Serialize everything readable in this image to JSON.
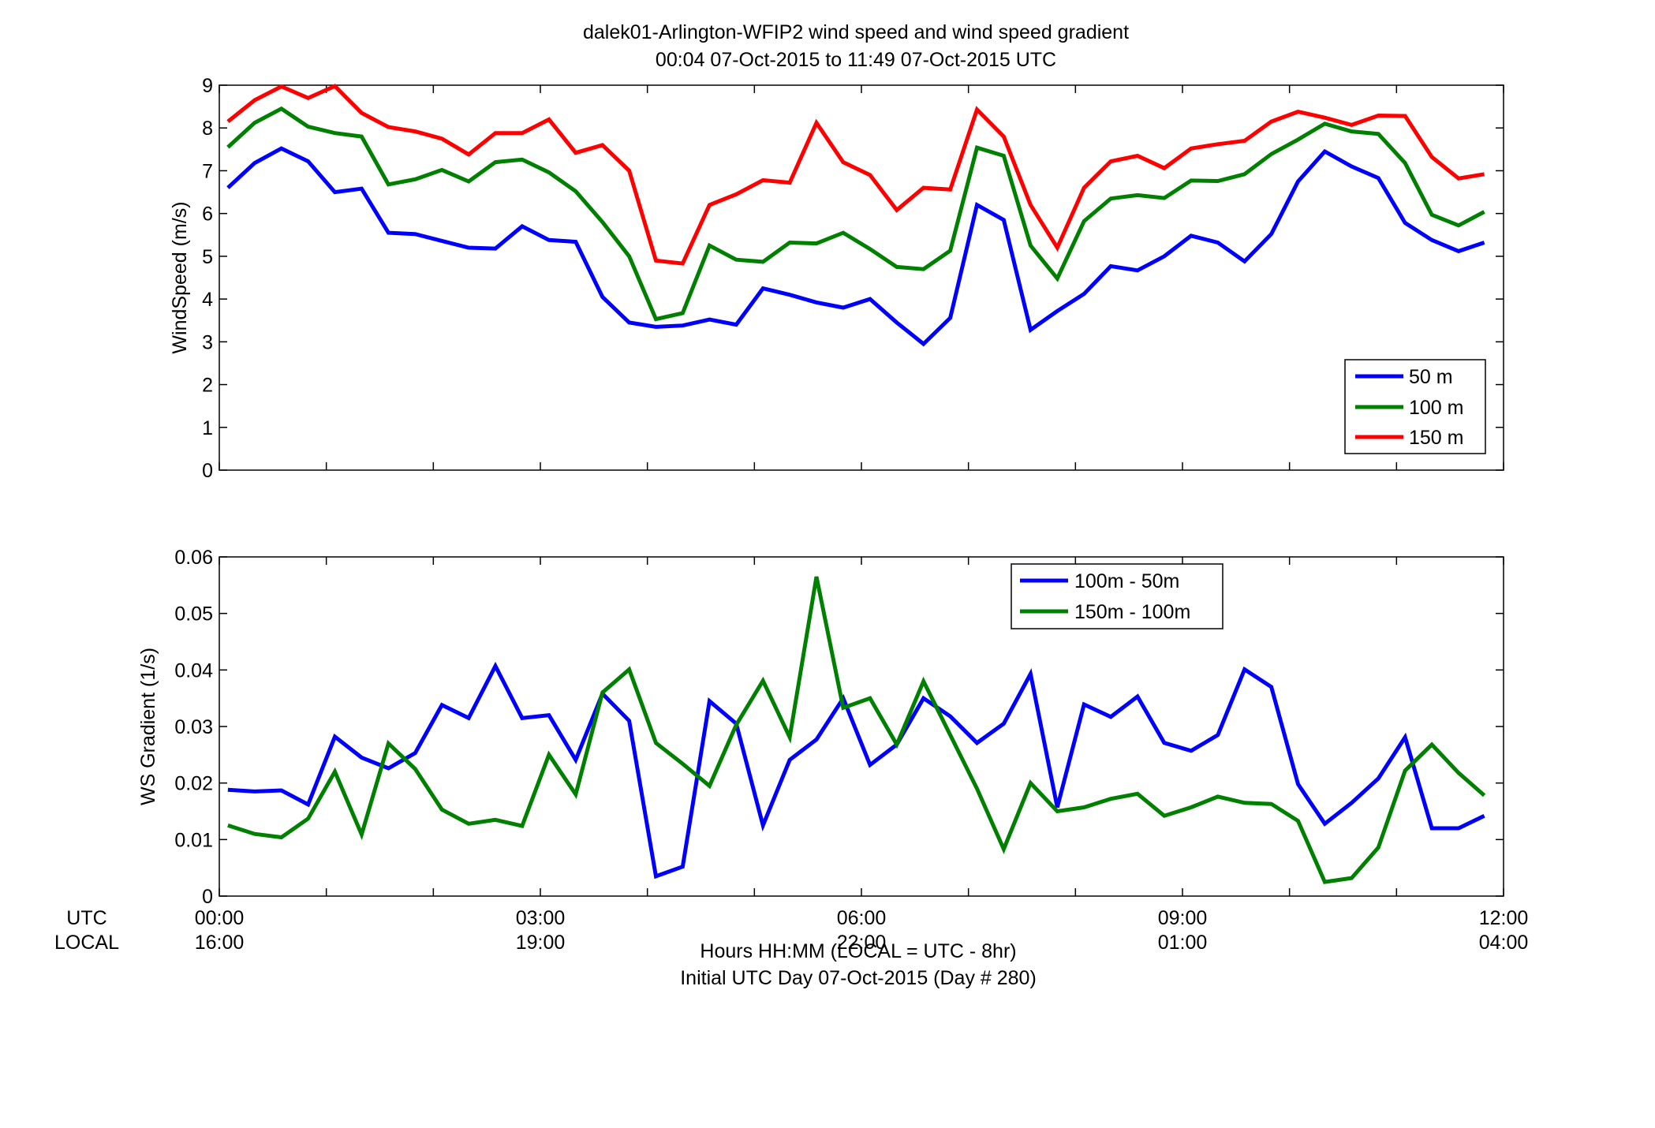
{
  "figure": {
    "title_line1": "dalek01-Arlington-WFIP2  wind speed and wind speed gradient",
    "title_line2": "00:04 07-Oct-2015 to 11:49 07-Oct-2015  UTC",
    "xlabel_line1": "Hours HH:MM  (LOCAL = UTC - 8hr)",
    "xlabel_line2": "Initial UTC Day 07-Oct-2015 (Day # 280)",
    "row_label_utc": "UTC",
    "row_label_local": "LOCAL"
  },
  "chart_data": [
    {
      "type": "line",
      "ylabel": "WindSpeed (m/s)",
      "xlim": [
        0,
        12
      ],
      "ylim": [
        0,
        9
      ],
      "yticks": [
        "0",
        "1",
        "2",
        "3",
        "4",
        "5",
        "6",
        "7",
        "8",
        "9"
      ],
      "grid": false,
      "legend_position": "bottom-right",
      "x": [
        0.08,
        0.33,
        0.58,
        0.83,
        1.08,
        1.33,
        1.58,
        1.83,
        2.08,
        2.33,
        2.58,
        2.83,
        3.08,
        3.33,
        3.58,
        3.83,
        4.08,
        4.33,
        4.58,
        4.83,
        5.08,
        5.33,
        5.58,
        5.83,
        6.08,
        6.33,
        6.58,
        6.83,
        7.08,
        7.33,
        7.58,
        7.83,
        8.08,
        8.33,
        8.58,
        8.83,
        9.08,
        9.33,
        9.58,
        9.83,
        10.08,
        10.33,
        10.58,
        10.83,
        11.08,
        11.33,
        11.58,
        11.82
      ],
      "series": [
        {
          "name": "50 m",
          "color": "#0000ff",
          "values": [
            6.6,
            7.18,
            7.52,
            7.22,
            6.5,
            6.58,
            5.55,
            5.52,
            5.36,
            5.2,
            5.18,
            5.7,
            5.38,
            5.34,
            4.05,
            3.45,
            3.35,
            3.38,
            3.52,
            3.4,
            4.25,
            4.1,
            3.92,
            3.8,
            4.0,
            3.45,
            2.95,
            3.56,
            6.2,
            5.85,
            3.28,
            3.72,
            4.12,
            4.77,
            4.67,
            5.0,
            5.48,
            5.32,
            4.88,
            5.52,
            6.75,
            7.45,
            7.1,
            6.83,
            5.78,
            5.38,
            5.12,
            5.32
          ]
        },
        {
          "name": "100 m",
          "color": "#008000",
          "values": [
            7.55,
            8.12,
            8.45,
            8.03,
            7.88,
            7.8,
            6.68,
            6.8,
            7.02,
            6.75,
            7.2,
            7.26,
            6.96,
            6.52,
            5.8,
            5.0,
            3.53,
            3.67,
            5.25,
            4.92,
            4.87,
            5.32,
            5.3,
            5.55,
            5.17,
            4.75,
            4.7,
            5.13,
            7.54,
            7.35,
            5.25,
            4.48,
            5.82,
            6.35,
            6.43,
            6.36,
            6.77,
            6.76,
            6.92,
            7.39,
            7.73,
            8.1,
            7.92,
            7.86,
            7.18,
            5.97,
            5.72,
            6.04
          ]
        },
        {
          "name": "150 m",
          "color": "#ff0000",
          "values": [
            8.15,
            8.65,
            8.97,
            8.7,
            8.98,
            8.35,
            8.02,
            7.92,
            7.75,
            7.38,
            7.88,
            7.88,
            8.2,
            7.42,
            7.6,
            7.0,
            4.9,
            4.83,
            6.2,
            6.45,
            6.78,
            6.72,
            8.12,
            7.2,
            6.9,
            6.08,
            6.6,
            6.56,
            8.43,
            7.8,
            6.2,
            5.2,
            6.6,
            7.22,
            7.35,
            7.06,
            7.52,
            7.62,
            7.7,
            8.15,
            8.38,
            8.24,
            8.07,
            8.29,
            8.28,
            7.32,
            6.82,
            6.92
          ]
        }
      ]
    },
    {
      "type": "line",
      "ylabel": "WS Gradient (1/s)",
      "xlim": [
        0,
        12
      ],
      "ylim": [
        0,
        0.06
      ],
      "yticks": [
        "0",
        "0.01",
        "0.02",
        "0.03",
        "0.04",
        "0.05",
        "0.06"
      ],
      "grid": false,
      "legend_position": "top-center",
      "x": [
        0.08,
        0.33,
        0.58,
        0.83,
        1.08,
        1.33,
        1.58,
        1.83,
        2.08,
        2.33,
        2.58,
        2.83,
        3.08,
        3.33,
        3.58,
        3.83,
        4.08,
        4.33,
        4.58,
        4.83,
        5.08,
        5.33,
        5.58,
        5.83,
        6.08,
        6.33,
        6.58,
        6.83,
        7.08,
        7.33,
        7.58,
        7.83,
        8.08,
        8.33,
        8.58,
        8.83,
        9.08,
        9.33,
        9.58,
        9.83,
        10.08,
        10.33,
        10.58,
        10.83,
        11.08,
        11.33,
        11.58,
        11.82
      ],
      "series": [
        {
          "name": "100m - 50m",
          "color": "#0000ff",
          "values": [
            0.0188,
            0.0185,
            0.0187,
            0.0162,
            0.0282,
            0.0245,
            0.0226,
            0.0253,
            0.0338,
            0.0315,
            0.0407,
            0.0315,
            0.032,
            0.0241,
            0.0358,
            0.031,
            0.0035,
            0.0052,
            0.0345,
            0.0305,
            0.0125,
            0.0241,
            0.0277,
            0.035,
            0.0232,
            0.0268,
            0.035,
            0.0318,
            0.0271,
            0.0305,
            0.0393,
            0.0157,
            0.0339,
            0.0317,
            0.0353,
            0.0271,
            0.0257,
            0.0285,
            0.0401,
            0.037,
            0.0198,
            0.0128,
            0.0165,
            0.0208,
            0.0281,
            0.012,
            0.012,
            0.0142
          ]
        },
        {
          "name": "150m - 100m",
          "color": "#008000",
          "values": [
            0.0125,
            0.011,
            0.0104,
            0.0137,
            0.022,
            0.0109,
            0.027,
            0.0225,
            0.0153,
            0.0128,
            0.0135,
            0.0124,
            0.025,
            0.018,
            0.036,
            0.0401,
            0.0271,
            0.0234,
            0.0195,
            0.0303,
            0.0381,
            0.0281,
            0.0565,
            0.0333,
            0.035,
            0.0268,
            0.038,
            0.0285,
            0.019,
            0.0083,
            0.02,
            0.015,
            0.0157,
            0.0172,
            0.0181,
            0.0142,
            0.0157,
            0.0176,
            0.0165,
            0.0163,
            0.0133,
            0.0025,
            0.0032,
            0.0086,
            0.0222,
            0.0268,
            0.0218,
            0.0178
          ]
        }
      ]
    }
  ],
  "xaxis": {
    "utc_ticks": [
      "00:00",
      "03:00",
      "06:00",
      "09:00",
      "12:00"
    ],
    "local_ticks": [
      "16:00",
      "19:00",
      "22:00",
      "01:00",
      "04:00"
    ]
  }
}
